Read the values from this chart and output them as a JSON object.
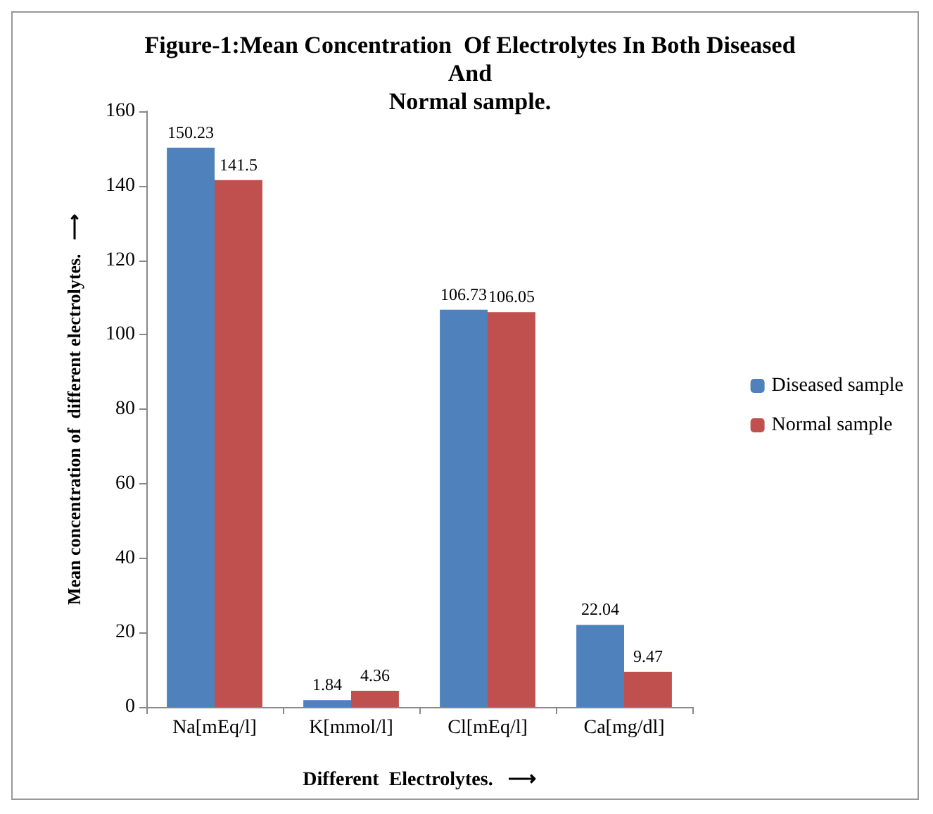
{
  "chart_data": {
    "type": "bar",
    "title": "Figure-1:Mean Concentration  Of Electrolytes In Both Diseased\nAnd\nNormal sample.",
    "xlabel": "Different  Electrolytes.   ⟶",
    "ylabel": "Mean concentration of  different electrolytes.   ⟶",
    "categories": [
      "Na[mEq/l]",
      "K[mmol/l]",
      "Cl[mEq/l]",
      "Ca[mg/dl]"
    ],
    "series": [
      {
        "name": "Diseased sample",
        "color": "#4f81bd",
        "values": [
          150.23,
          1.84,
          106.73,
          22.04
        ]
      },
      {
        "name": "Normal sample",
        "color": "#c0504d",
        "values": [
          141.5,
          4.36,
          106.05,
          9.47
        ]
      }
    ],
    "ylim": [
      0,
      160
    ],
    "yticks": [
      0,
      20,
      40,
      60,
      80,
      100,
      120,
      140,
      160
    ],
    "data_labels": true,
    "legend": "right",
    "grid": false
  }
}
